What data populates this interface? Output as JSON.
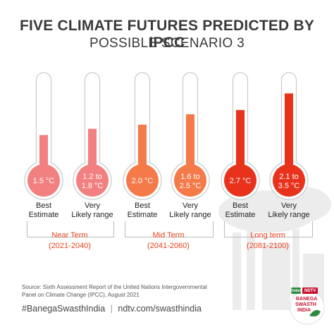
{
  "header": {
    "title": "FIVE CLIMATE FUTURES PREDICTED BY IPCC",
    "subtitle": "POSSIBLE SCENARIO 3"
  },
  "chart_data": {
    "type": "bar",
    "style": "thermometers",
    "categories": [
      "Best Estimate",
      "Very Likely range",
      "Best Estimate",
      "Very Likely range",
      "Best Estimate",
      "Very Likely range"
    ],
    "bulb_labels": [
      "1.5 °C",
      "1.2 to 1.8 °C",
      "2.0 °C",
      "1.6 to 2.5 °C",
      "2.7 °C",
      "2.1 to 3.5 °C"
    ],
    "values": [
      1.5,
      1.8,
      2.0,
      2.5,
      2.7,
      3.5
    ],
    "value_unit": "°C",
    "colors": [
      "#f28080",
      "#f28080",
      "#f47a4a",
      "#f47a4a",
      "#e8321c",
      "#e8321c"
    ],
    "groups": [
      {
        "name": "Near Term",
        "years": "(2021-2040)",
        "color": "#e8431d"
      },
      {
        "name": "Mid Term",
        "years": "(2041-2060)",
        "color": "#e8431d"
      },
      {
        "name": "Long term",
        "years": "(2081-2100)",
        "color": "#e8431d"
      }
    ],
    "ylim": [
      0,
      4.5
    ]
  },
  "source": "Source: Sixth Assessment Report of the United Nations Intergovernmental Panel on Climate Change (IPCC), August 2021",
  "footer": {
    "hashtag": "#BanegaSwasthIndia",
    "separator": "|",
    "url": "ndtv.com/swasthindia"
  },
  "logo": {
    "text1": "Dettol",
    "text2": "NDTV",
    "text3": "BANEGA",
    "text4": "SWASTH",
    "text5": "INDIA"
  }
}
